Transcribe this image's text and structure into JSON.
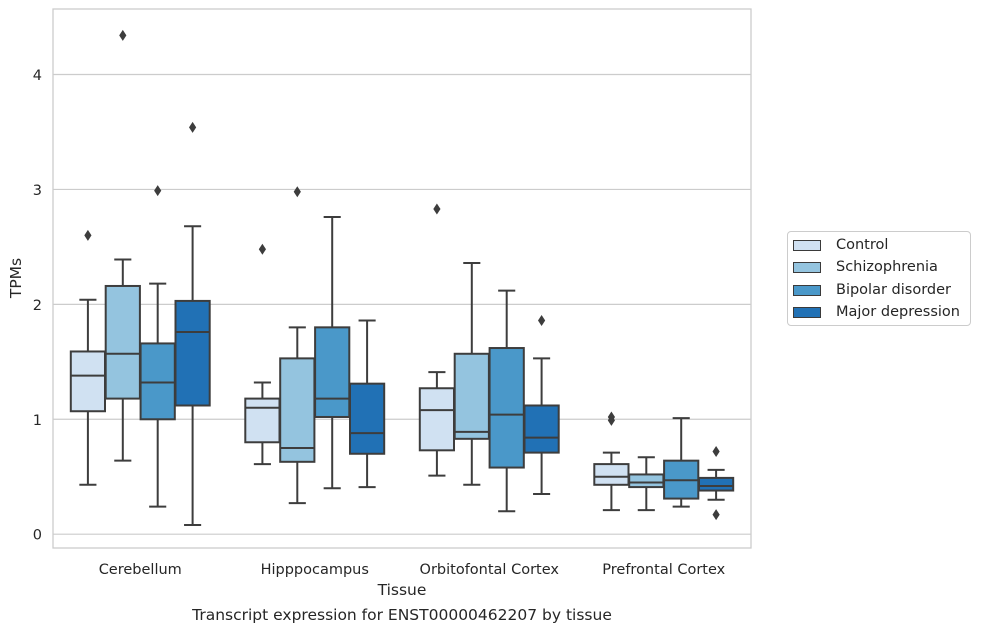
{
  "chart_data": {
    "type": "box",
    "xlabel": "Tissue",
    "ylabel": "TPMs",
    "caption": "Transcript expression for ENST00000462207 by tissue",
    "categories": [
      "Cerebellum",
      "Hipppocampus",
      "Orbitofontal Cortex",
      "Prefrontal Cortex"
    ],
    "ylim": [
      -0.12,
      4.57
    ],
    "yticks": [
      0,
      1,
      2,
      3,
      4
    ],
    "grid": "y",
    "legend_position": "right",
    "series": [
      {
        "name": "Control",
        "color": "#d0e1f2",
        "boxes": [
          {
            "low": 0.43,
            "q1": 1.07,
            "median": 1.38,
            "q3": 1.59,
            "high": 2.04,
            "outliers": [
              2.6
            ]
          },
          {
            "low": 0.61,
            "q1": 0.8,
            "median": 1.1,
            "q3": 1.18,
            "high": 1.32,
            "outliers": [
              2.48
            ]
          },
          {
            "low": 0.51,
            "q1": 0.73,
            "median": 1.08,
            "q3": 1.27,
            "high": 1.41,
            "outliers": [
              2.83
            ]
          },
          {
            "low": 0.21,
            "q1": 0.43,
            "median": 0.5,
            "q3": 0.61,
            "high": 0.71,
            "outliers": [
              0.99,
              1.02
            ]
          }
        ]
      },
      {
        "name": "Schizophrenia",
        "color": "#94c4df",
        "boxes": [
          {
            "low": 0.64,
            "q1": 1.18,
            "median": 1.57,
            "q3": 2.16,
            "high": 2.39,
            "outliers": [
              4.34
            ]
          },
          {
            "low": 0.27,
            "q1": 0.63,
            "median": 0.75,
            "q3": 1.53,
            "high": 1.8,
            "outliers": [
              2.98
            ]
          },
          {
            "low": 0.43,
            "q1": 0.83,
            "median": 0.89,
            "q3": 1.57,
            "high": 2.36,
            "outliers": []
          },
          {
            "low": 0.21,
            "q1": 0.41,
            "median": 0.45,
            "q3": 0.52,
            "high": 0.67,
            "outliers": []
          }
        ]
      },
      {
        "name": "Bipolar disorder",
        "color": "#4a98c9",
        "boxes": [
          {
            "low": 0.24,
            "q1": 1.0,
            "median": 1.32,
            "q3": 1.66,
            "high": 2.18,
            "outliers": [
              2.99
            ]
          },
          {
            "low": 0.4,
            "q1": 1.02,
            "median": 1.18,
            "q3": 1.8,
            "high": 2.76,
            "outliers": []
          },
          {
            "low": 0.2,
            "q1": 0.58,
            "median": 1.04,
            "q3": 1.62,
            "high": 2.12,
            "outliers": []
          },
          {
            "low": 0.24,
            "q1": 0.31,
            "median": 0.47,
            "q3": 0.64,
            "high": 1.01,
            "outliers": []
          }
        ]
      },
      {
        "name": "Major depression",
        "color": "#2171b5",
        "boxes": [
          {
            "low": 0.08,
            "q1": 1.12,
            "median": 1.76,
            "q3": 2.03,
            "high": 2.68,
            "outliers": [
              3.54
            ]
          },
          {
            "low": 0.41,
            "q1": 0.7,
            "median": 0.88,
            "q3": 1.31,
            "high": 1.86,
            "outliers": []
          },
          {
            "low": 0.35,
            "q1": 0.71,
            "median": 0.84,
            "q3": 1.12,
            "high": 1.53,
            "outliers": [
              1.86
            ]
          },
          {
            "low": 0.3,
            "q1": 0.38,
            "median": 0.42,
            "q3": 0.49,
            "high": 0.56,
            "outliers": [
              0.17,
              0.72
            ]
          }
        ]
      }
    ]
  }
}
